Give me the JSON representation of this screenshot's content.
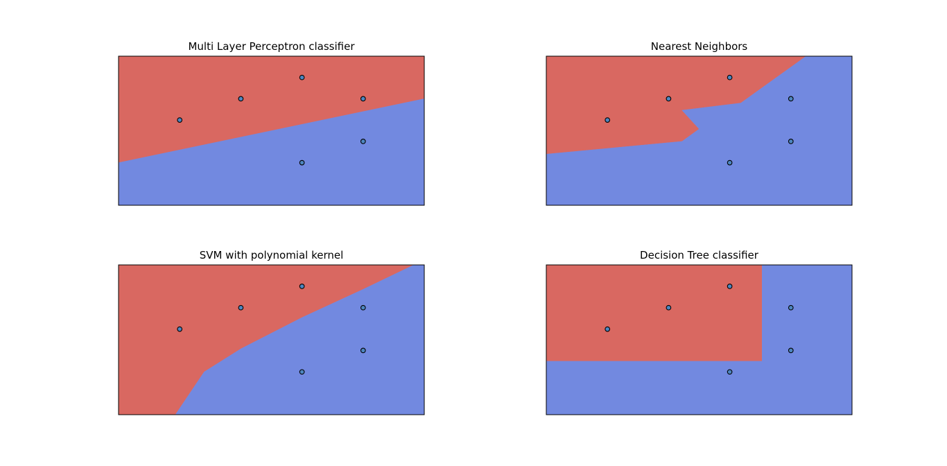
{
  "colors": {
    "class_a_region": "#d96861",
    "class_b_region": "#7289e0",
    "point_fill": "#4d86c0",
    "point_edge": "#000000",
    "frame": "#000000",
    "background": "#ffffff"
  },
  "chart_data": [
    {
      "type": "scatter",
      "title": "Multi Layer Perceptron classifier",
      "xlim": [
        -1,
        4
      ],
      "ylim": [
        -1,
        2.5
      ],
      "xticks": [],
      "yticks": [],
      "grid": false,
      "points": [
        [
          0,
          1
        ],
        [
          1,
          1.5
        ],
        [
          2,
          2
        ],
        [
          3,
          0.5
        ],
        [
          3,
          1.5
        ],
        [
          2,
          0
        ]
      ],
      "regions": [
        {
          "class": "red",
          "polygon": [
            [
              -1,
              2.5
            ],
            [
              4,
              2.5
            ],
            [
              4,
              1.5
            ],
            [
              -1,
              0
            ]
          ]
        },
        {
          "class": "blue",
          "polygon": [
            [
              -1,
              0
            ],
            [
              4,
              1.5
            ],
            [
              4,
              -1
            ],
            [
              -1,
              -1
            ]
          ]
        }
      ]
    },
    {
      "type": "scatter",
      "title": "Nearest Neighbors",
      "xlim": [
        -1,
        4
      ],
      "ylim": [
        -1,
        2.5
      ],
      "xticks": [],
      "yticks": [],
      "grid": false,
      "points": [
        [
          0,
          1
        ],
        [
          1,
          1.5
        ],
        [
          2,
          2
        ],
        [
          3,
          0.5
        ],
        [
          3,
          1.5
        ],
        [
          2,
          0
        ]
      ],
      "regions": [
        {
          "class": "red",
          "polygon": [
            [
              -1,
              2.5
            ],
            [
              3.25,
              2.5
            ],
            [
              2.18,
              1.4
            ],
            [
              1.22,
              1.23
            ],
            [
              1.5,
              0.79
            ],
            [
              1.22,
              0.5
            ],
            [
              -1,
              0.2
            ]
          ]
        },
        {
          "class": "blue",
          "polygon": [
            [
              3.25,
              2.5
            ],
            [
              4,
              2.5
            ],
            [
              4,
              -1
            ],
            [
              -1,
              -1
            ],
            [
              -1,
              0.2
            ],
            [
              1.22,
              0.5
            ],
            [
              1.5,
              0.79
            ],
            [
              1.22,
              1.23
            ],
            [
              2.18,
              1.4
            ]
          ]
        }
      ]
    },
    {
      "type": "scatter",
      "title": "SVM with polynomial kernel",
      "xlim": [
        -1,
        4
      ],
      "ylim": [
        -1,
        2.5
      ],
      "xticks": [],
      "yticks": [],
      "grid": false,
      "points": [
        [
          0,
          1
        ],
        [
          1,
          1.5
        ],
        [
          2,
          2
        ],
        [
          3,
          0.5
        ],
        [
          3,
          1.5
        ],
        [
          2,
          0
        ]
      ],
      "regions": [
        {
          "class": "red",
          "polygon": [
            [
              -1,
              2.5
            ],
            [
              3.83,
              2.5
            ],
            [
              3,
              1.93
            ],
            [
              2,
              1.27
            ],
            [
              1,
              0.54
            ],
            [
              0.4,
              0
            ],
            [
              -0.07,
              -1
            ],
            [
              -1,
              -1
            ]
          ]
        },
        {
          "class": "blue",
          "polygon": [
            [
              3.83,
              2.5
            ],
            [
              4,
              2.5
            ],
            [
              4,
              -1
            ],
            [
              -0.07,
              -1
            ],
            [
              0.4,
              0
            ],
            [
              1,
              0.54
            ],
            [
              2,
              1.27
            ],
            [
              3,
              1.93
            ]
          ]
        }
      ]
    },
    {
      "type": "scatter",
      "title": "Decision Tree classifier",
      "xlim": [
        -1,
        4
      ],
      "ylim": [
        -1,
        2.5
      ],
      "xticks": [],
      "yticks": [],
      "grid": false,
      "points": [
        [
          0,
          1
        ],
        [
          1,
          1.5
        ],
        [
          2,
          2
        ],
        [
          3,
          0.5
        ],
        [
          3,
          1.5
        ],
        [
          2,
          0
        ]
      ],
      "regions": [
        {
          "class": "red",
          "polygon": [
            [
              -1,
              2.5
            ],
            [
              2.53,
              2.5
            ],
            [
              2.53,
              0.25
            ],
            [
              -1,
              0.25
            ]
          ]
        },
        {
          "class": "blue",
          "polygon": [
            [
              2.53,
              2.5
            ],
            [
              4,
              2.5
            ],
            [
              4,
              -1
            ],
            [
              -1,
              -1
            ],
            [
              -1,
              0.25
            ],
            [
              2.53,
              0.25
            ]
          ]
        }
      ]
    }
  ]
}
